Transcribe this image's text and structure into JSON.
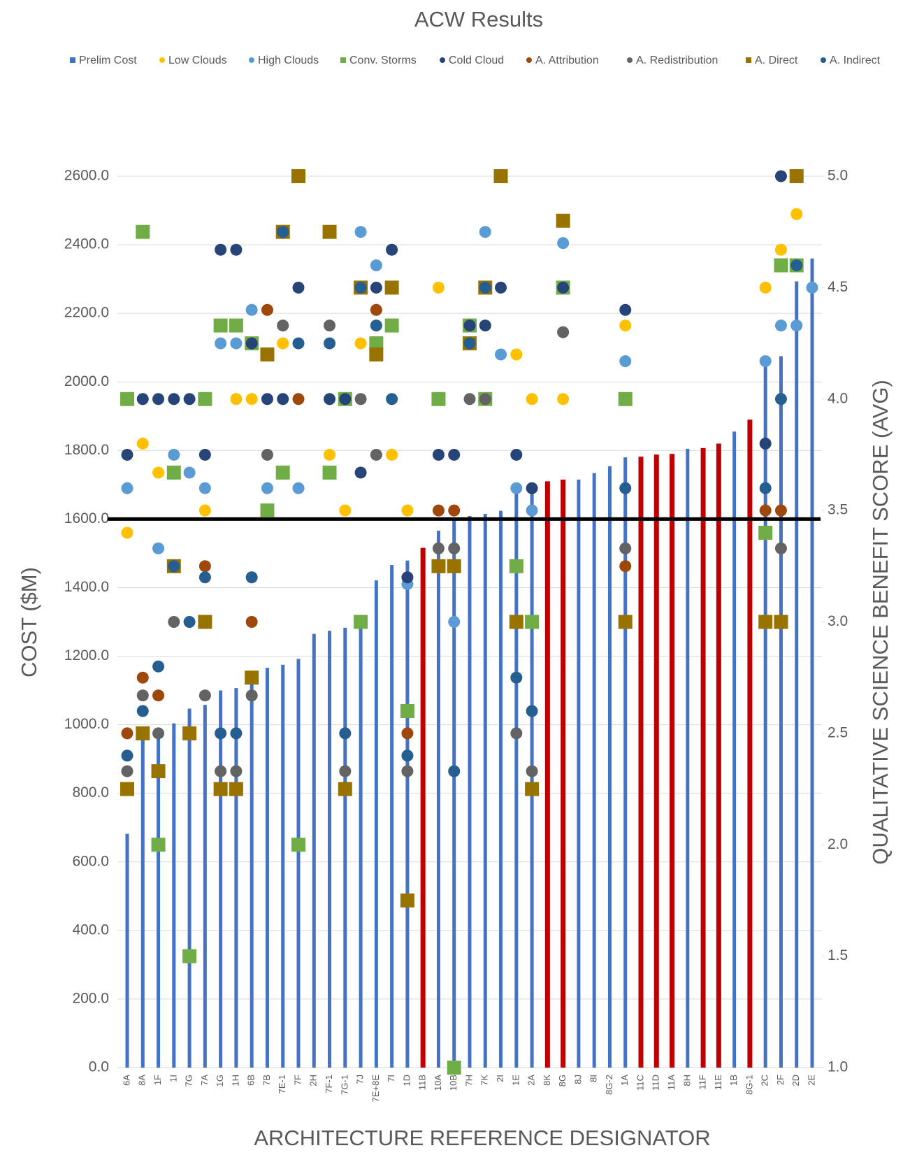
{
  "chart_data": {
    "type": "combo",
    "title": "ACW Results",
    "x_label": "ARCHITECTURE REFERENCE DESIGNATOR",
    "y_label": "COST ($M)",
    "y2_label": "QUALITATIVE SCIENCE BENEFIT SCORE (AVG)",
    "categories": [
      "6A",
      "8A",
      "1F",
      "1I",
      "7G",
      "7A",
      "1G",
      "1H",
      "6B",
      "7B",
      "7E-1",
      "7F",
      "2H",
      "7F-1",
      "7G-1",
      "7J",
      "7E+8E",
      "7I",
      "1D",
      "11B",
      "10A",
      "10B",
      "7H",
      "7K",
      "2I",
      "1E",
      "2A",
      "8K",
      "8G",
      "8J",
      "8I",
      "8G-2",
      "1A",
      "11C",
      "11D",
      "11A",
      "8H",
      "11F",
      "11E",
      "1B",
      "8G-1",
      "2C",
      "2F",
      "2D",
      "2E"
    ],
    "ylim": [
      0,
      2600
    ],
    "yticks": [
      {
        "value": 0,
        "label": "0.0"
      },
      {
        "value": 200,
        "label": "200.0"
      },
      {
        "value": 400,
        "label": "400.0"
      },
      {
        "value": 600,
        "label": "600.0"
      },
      {
        "value": 800,
        "label": "800.0"
      },
      {
        "value": 1000,
        "label": "1000.0"
      },
      {
        "value": 1200,
        "label": "1200.0"
      },
      {
        "value": 1400,
        "label": "1400.0"
      },
      {
        "value": 1600,
        "label": "1600.0"
      },
      {
        "value": 1800,
        "label": "1800.0"
      },
      {
        "value": 2000,
        "label": "2000.0"
      },
      {
        "value": 2200,
        "label": "2200.0"
      },
      {
        "value": 2400,
        "label": "2400.0"
      },
      {
        "value": 2600,
        "label": "2600.0"
      }
    ],
    "y2lim": [
      1,
      5
    ],
    "y2ticks": [
      {
        "value": 1,
        "label": "1.0"
      },
      1.5,
      {
        "value": 2,
        "label": "2.0"
      },
      2.5,
      {
        "value": 3,
        "label": "3.0"
      },
      3.5,
      {
        "value": 4,
        "label": "4.0"
      },
      4.5,
      {
        "value": 5,
        "label": "5.0"
      }
    ],
    "grid": true,
    "legend": "top",
    "hline": {
      "value": 1600,
      "color": "#000000"
    },
    "series": [
      {
        "name": "Prelim Cost",
        "type": "bar",
        "marker": "square",
        "color": "#4472c4",
        "colors": [
          "#4472c4",
          "#4472c4",
          "#4472c4",
          "#4472c4",
          "#4472c4",
          "#4472c4",
          "#4472c4",
          "#4472c4",
          "#4472c4",
          "#4472c4",
          "#4472c4",
          "#4472c4",
          "#4472c4",
          "#4472c4",
          "#4472c4",
          "#4472c4",
          "#4472c4",
          "#4472c4",
          "#4472c4",
          "#c00000",
          "#4472c4",
          "#4472c4",
          "#4472c4",
          "#4472c4",
          "#4472c4",
          "#4472c4",
          "#4472c4",
          "#c00000",
          "#c00000",
          "#4472c4",
          "#4472c4",
          "#4472c4",
          "#4472c4",
          "#c00000",
          "#c00000",
          "#c00000",
          "#4472c4",
          "#c00000",
          "#c00000",
          "#4472c4",
          "#c00000",
          "#4472c4",
          "#4472c4",
          "#4472c4",
          "#4472c4"
        ],
        "values": [
          682,
          960,
          990,
          1004,
          1047,
          1058,
          1100,
          1107,
          1130,
          1166,
          1175,
          1192,
          1265,
          1274,
          1283,
          1296,
          1421,
          1466,
          1479,
          1516,
          1566,
          1602,
          1609,
          1615,
          1624,
          1689,
          1700,
          1710,
          1715,
          1715,
          1734,
          1754,
          1780,
          1782,
          1788,
          1790,
          1805,
          1807,
          1820,
          1855,
          1890,
          2056,
          2075,
          2293,
          2360
        ]
      },
      {
        "name": "Low Clouds",
        "type": "scatter",
        "axis": "y2",
        "marker": "circle",
        "color": "#ffc000",
        "values": [
          3.4,
          3.8,
          3.67,
          null,
          null,
          3.5,
          null,
          4.0,
          4.0,
          null,
          4.25,
          null,
          null,
          3.75,
          3.5,
          4.25,
          null,
          3.75,
          3.5,
          null,
          4.5,
          null,
          null,
          null,
          null,
          4.2,
          4.0,
          null,
          4.0,
          null,
          null,
          null,
          4.33,
          null,
          null,
          null,
          null,
          null,
          null,
          null,
          null,
          4.5,
          4.67,
          4.83,
          null
        ]
      },
      {
        "name": "High Clouds",
        "type": "scatter",
        "axis": "y2",
        "marker": "circle",
        "color": "#5b9bd5",
        "values": [
          3.6,
          null,
          3.33,
          3.75,
          3.67,
          3.6,
          4.25,
          4.25,
          4.4,
          3.6,
          null,
          3.6,
          null,
          null,
          null,
          4.75,
          4.6,
          null,
          3.17,
          null,
          null,
          3.0,
          null,
          4.75,
          4.2,
          3.6,
          3.5,
          null,
          4.7,
          null,
          null,
          null,
          4.17,
          null,
          null,
          null,
          null,
          null,
          null,
          null,
          null,
          4.17,
          4.33,
          4.33,
          4.5
        ]
      },
      {
        "name": "Conv. Storms",
        "type": "scatter",
        "axis": "y2",
        "marker": "square",
        "color": "#70ad47",
        "values": [
          4.0,
          4.75,
          2.0,
          3.67,
          1.5,
          4.0,
          4.33,
          4.33,
          4.25,
          3.5,
          3.67,
          2.0,
          null,
          3.67,
          4.0,
          3.0,
          4.25,
          4.33,
          2.6,
          null,
          4.0,
          1.0,
          4.33,
          4.0,
          null,
          3.25,
          3.0,
          null,
          4.5,
          null,
          null,
          null,
          4.0,
          null,
          null,
          null,
          null,
          null,
          null,
          null,
          null,
          3.4,
          4.6,
          4.6,
          null
        ]
      },
      {
        "name": "Cold Cloud",
        "type": "scatter",
        "axis": "y2",
        "marker": "circle",
        "color": "#264478",
        "values": [
          3.75,
          4.0,
          4.0,
          4.0,
          4.0,
          3.75,
          4.67,
          4.67,
          4.25,
          4.0,
          4.0,
          4.5,
          null,
          4.0,
          4.0,
          3.67,
          4.5,
          4.67,
          3.2,
          null,
          3.75,
          3.75,
          4.33,
          4.33,
          4.5,
          3.75,
          3.6,
          null,
          4.5,
          null,
          null,
          null,
          4.4,
          null,
          null,
          null,
          null,
          null,
          null,
          null,
          null,
          3.8,
          5.0,
          null,
          null
        ]
      },
      {
        "name": "A. Attribution",
        "type": "scatter",
        "axis": "y2",
        "marker": "circle",
        "color": "#9e480e",
        "values": [
          2.5,
          2.75,
          2.67,
          null,
          null,
          3.25,
          null,
          null,
          3.0,
          4.4,
          null,
          4.0,
          null,
          null,
          null,
          null,
          4.4,
          null,
          2.5,
          null,
          3.5,
          3.5,
          null,
          null,
          null,
          null,
          null,
          null,
          null,
          null,
          null,
          null,
          3.25,
          null,
          null,
          null,
          null,
          null,
          null,
          null,
          null,
          3.5,
          3.5,
          null,
          null
        ]
      },
      {
        "name": "A. Redistribution",
        "type": "scatter",
        "axis": "y2",
        "marker": "circle",
        "color": "#636363",
        "values": [
          2.33,
          2.67,
          2.5,
          3.0,
          null,
          2.67,
          2.33,
          2.33,
          2.67,
          3.75,
          4.33,
          null,
          null,
          4.33,
          2.33,
          4.0,
          3.75,
          null,
          2.33,
          null,
          3.33,
          3.33,
          4.0,
          4.0,
          null,
          2.5,
          2.33,
          null,
          4.3,
          null,
          null,
          null,
          3.33,
          null,
          null,
          null,
          null,
          null,
          null,
          null,
          null,
          null,
          3.33,
          null,
          null
        ]
      },
      {
        "name": "A. Direct",
        "type": "scatter",
        "axis": "y2",
        "marker": "square",
        "color": "#997300",
        "values": [
          2.25,
          2.5,
          2.33,
          3.25,
          2.5,
          3.0,
          2.25,
          2.25,
          2.75,
          4.2,
          4.75,
          5.0,
          null,
          4.75,
          2.25,
          4.5,
          4.2,
          4.5,
          1.75,
          null,
          3.25,
          3.25,
          4.25,
          4.5,
          5.0,
          3.0,
          2.25,
          null,
          4.8,
          null,
          null,
          null,
          3.0,
          null,
          null,
          null,
          null,
          null,
          null,
          null,
          null,
          3.0,
          3.0,
          5.0,
          null
        ]
      },
      {
        "name": "A. Indirect",
        "type": "scatter",
        "axis": "y2",
        "marker": "circle",
        "color": "#255e91",
        "values": [
          2.4,
          2.6,
          2.8,
          3.25,
          3.0,
          3.2,
          2.5,
          2.5,
          3.2,
          null,
          4.75,
          4.25,
          null,
          4.25,
          2.5,
          4.5,
          4.33,
          4.0,
          2.4,
          null,
          null,
          2.33,
          4.25,
          4.5,
          null,
          2.75,
          2.6,
          null,
          null,
          null,
          null,
          null,
          3.6,
          null,
          null,
          null,
          null,
          null,
          null,
          null,
          null,
          3.6,
          4.0,
          4.6,
          null
        ]
      }
    ]
  }
}
